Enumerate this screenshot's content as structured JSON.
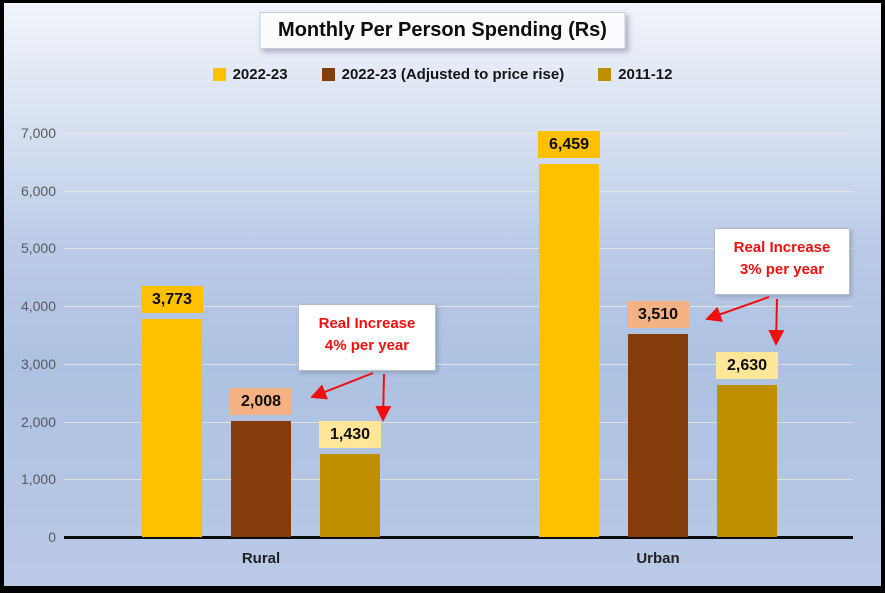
{
  "title": "Monthly Per Person Spending (Rs)",
  "legend": [
    {
      "label": "2022-23",
      "color": "#FFC000"
    },
    {
      "label": "2022-23 (Adjusted to price rise)",
      "color": "#843C0C"
    },
    {
      "label": "2011-12",
      "color": "#BF8F00"
    }
  ],
  "chart_data": {
    "type": "bar",
    "title": "Monthly Per Person Spending (Rs)",
    "categories": [
      "Rural",
      "Urban"
    ],
    "series": [
      {
        "name": "2022-23",
        "color": "#FFC000",
        "label_bg": "#FFC000",
        "values": [
          3773,
          6459
        ],
        "labels": [
          "3,773",
          "6,459"
        ]
      },
      {
        "name": "2022-23 (Adjusted to price rise)",
        "color": "#843C0C",
        "label_bg": "#F4B183",
        "values": [
          2008,
          3510
        ],
        "labels": [
          "2,008",
          "3,510"
        ]
      },
      {
        "name": "2011-12",
        "color": "#BF8F00",
        "label_bg": "#FFE699",
        "values": [
          1430,
          2630
        ],
        "labels": [
          "1,430",
          "2,630"
        ]
      }
    ],
    "ylim": [
      0,
      7000
    ],
    "y_ticks": [
      "0",
      "1,000",
      "2,000",
      "3,000",
      "4,000",
      "5,000",
      "6,000",
      "7,000"
    ],
    "grid": true,
    "legend_position": "top",
    "annotation_color": "#F00F0F"
  },
  "annotations": [
    {
      "line1": "Real Increase",
      "line2": "4% per year"
    },
    {
      "line1": "Real Increase",
      "line2": "3% per year"
    }
  ]
}
